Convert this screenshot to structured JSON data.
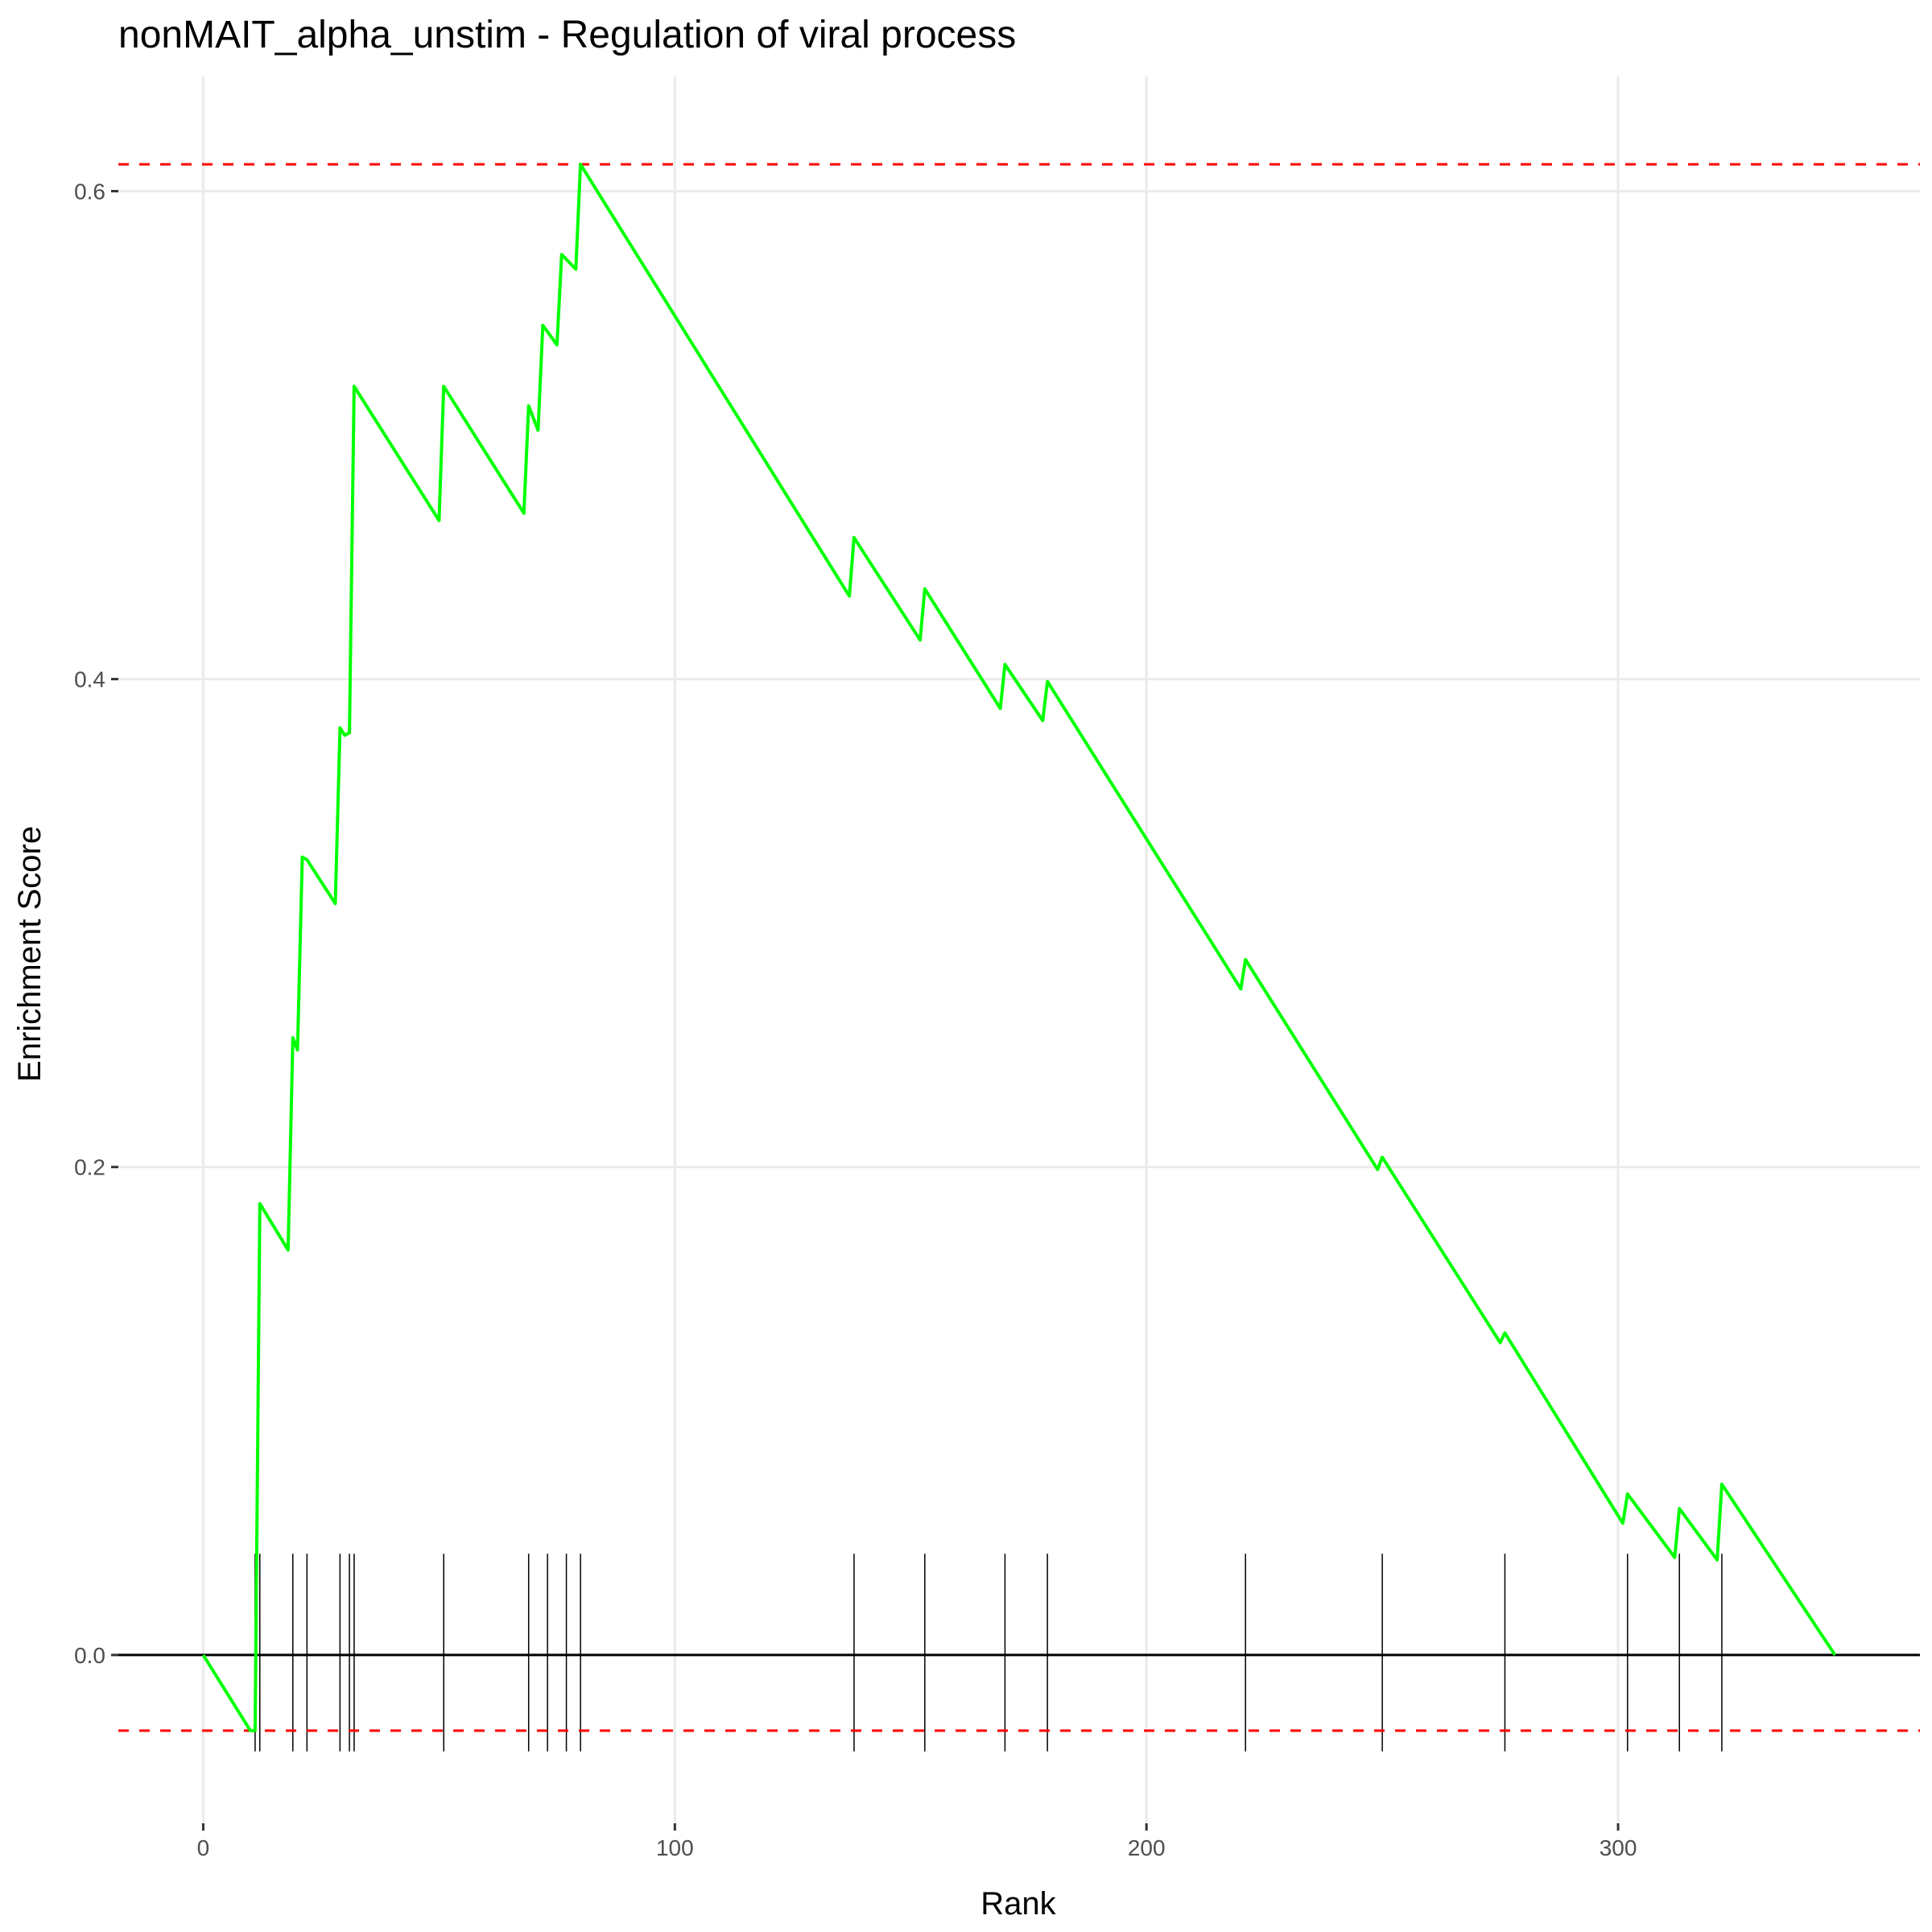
{
  "title": "nonMAIT_alpha_unstim - Regulation of viral process",
  "chart_data": {
    "type": "line",
    "title": "nonMAIT_alpha_unstim - Regulation of viral process",
    "xlabel": "Rank",
    "ylabel": "Enrichment Score",
    "xlim": [
      -18,
      364
    ],
    "ylim": [
      -0.069,
      0.647
    ],
    "xticks": [
      0,
      100,
      200,
      300
    ],
    "yticks": [
      0.0,
      0.2,
      0.4,
      0.6
    ],
    "grid": true,
    "legend": "none",
    "colors": {
      "curve": "#00ff00",
      "threshold": "#ff0000",
      "baseline": "#000000",
      "hits": "#000000"
    },
    "thresholds": [
      0.611,
      -0.031
    ],
    "hit_ranks": [
      11,
      12,
      19,
      22,
      29,
      31,
      32,
      51,
      69,
      73,
      77,
      80,
      138,
      153,
      170,
      179,
      221,
      250,
      276,
      302,
      313,
      322
    ],
    "series": [
      {
        "x": [
          0,
          10,
          11,
          12,
          18,
          19,
          20,
          21,
          22,
          28,
          29,
          30,
          31,
          32,
          50,
          51,
          68,
          69,
          71,
          72,
          75,
          76,
          79,
          80,
          137,
          138,
          152,
          153,
          169,
          170,
          178,
          179,
          220,
          221,
          249,
          250,
          275,
          276,
          301,
          302,
          312,
          313,
          321,
          322,
          346
        ],
        "y": [
          0.0,
          -0.031,
          -0.031,
          0.185,
          0.166,
          0.253,
          0.248,
          0.327,
          0.326,
          0.308,
          0.38,
          0.377,
          0.378,
          0.52,
          0.465,
          0.52,
          0.468,
          0.512,
          0.502,
          0.545,
          0.537,
          0.574,
          0.568,
          0.611,
          0.434,
          0.458,
          0.416,
          0.437,
          0.388,
          0.406,
          0.383,
          0.399,
          0.273,
          0.285,
          0.199,
          0.204,
          0.128,
          0.132,
          0.054,
          0.066,
          0.04,
          0.06,
          0.039,
          0.07,
          0.0
        ]
      }
    ]
  }
}
